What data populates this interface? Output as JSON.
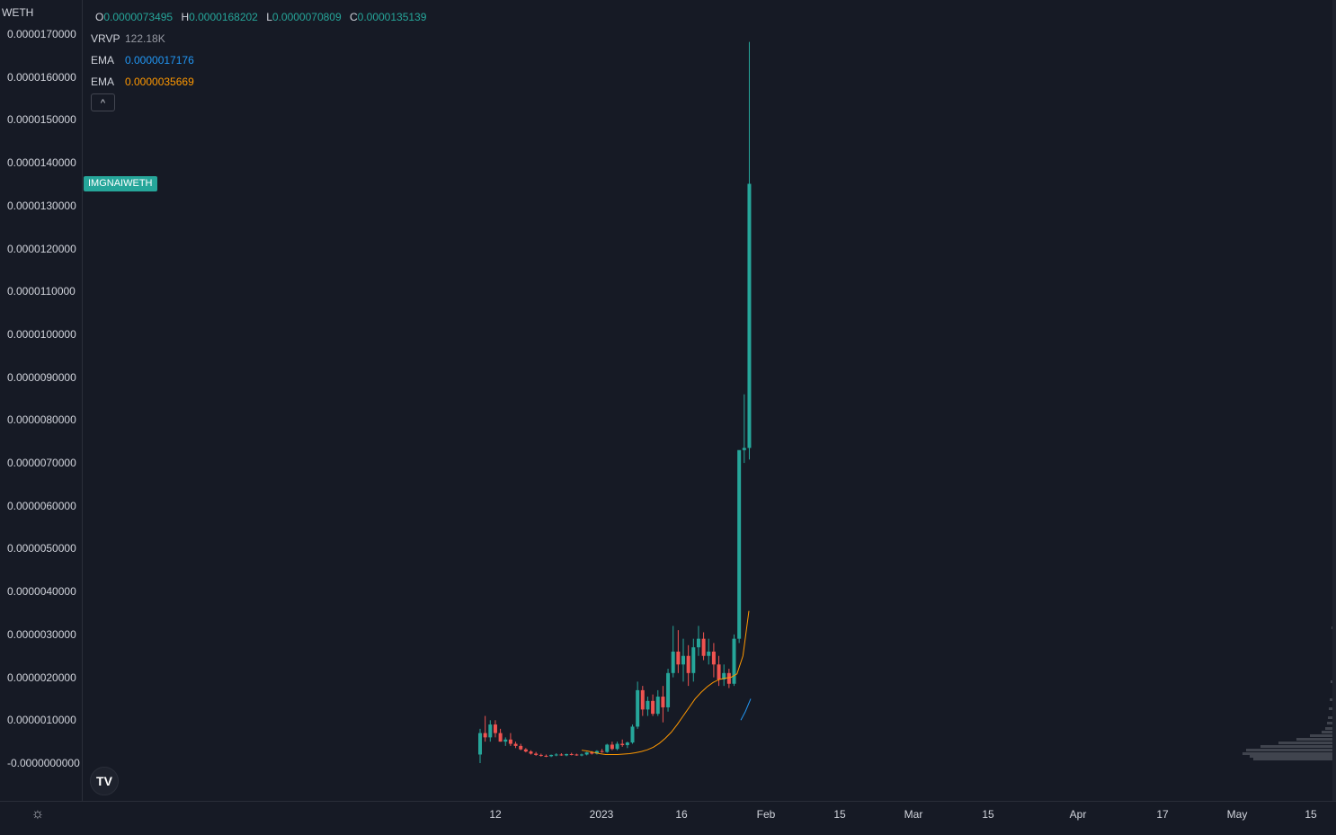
{
  "pair_unit": "WETH",
  "legend": {
    "o_label": "O",
    "o_value": "0.0000073495",
    "h_label": "H",
    "h_value": "0.0000168202",
    "l_label": "L",
    "l_value": "0.0000070809",
    "c_label": "C",
    "c_value": "0.0000135139"
  },
  "indicators": [
    {
      "name": "VRVP",
      "value": "122.18K",
      "color": "#9598a1"
    },
    {
      "name": "EMA",
      "value": "0.0000017176",
      "color": "#2196f3"
    },
    {
      "name": "EMA",
      "value": "0.0000035669",
      "color": "#ff9800"
    }
  ],
  "collapse_icon": "^",
  "symbol_tag": "IMGNAIWETH",
  "logo_text": "TV",
  "colors": {
    "up": "#26a69a",
    "down": "#ef5350",
    "background": "#161a25",
    "ema_fast": "#2196f3",
    "ema_slow": "#ff9800"
  },
  "chart_data": {
    "type": "candlestick",
    "y_tick_labels": [
      "0.0000170000",
      "0.0000160000",
      "0.0000150000",
      "0.0000140000",
      "0.0000130000",
      "0.0000120000",
      "0.0000110000",
      "0.0000100000",
      "0.0000090000",
      "0.0000080000",
      "0.0000070000",
      "0.0000060000",
      "0.0000050000",
      "0.0000040000",
      "0.0000030000",
      "0.0000020000",
      "0.0000010000",
      "-0.0000000000"
    ],
    "y_tick_values": [
      17,
      16,
      15,
      14,
      13,
      12,
      11,
      10,
      9,
      8,
      7,
      6,
      5,
      4,
      3,
      2,
      1,
      0
    ],
    "y_unit_scale": "1e-6",
    "ylim": [
      -0.4,
      17.4
    ],
    "x_tick_labels": [
      "12",
      "2023",
      "16",
      "Feb",
      "15",
      "Mar",
      "15",
      "Apr",
      "17",
      "May",
      "15"
    ],
    "x_tick_positions": [
      551,
      669,
      758,
      852,
      934,
      1016,
      1099,
      1199,
      1293,
      1376,
      1458
    ],
    "candles_ohlc": [
      [
        0.2,
        0.8,
        0.0,
        0.7
      ],
      [
        0.7,
        1.1,
        0.5,
        0.6
      ],
      [
        0.6,
        1.0,
        0.5,
        0.9
      ],
      [
        0.9,
        1.0,
        0.6,
        0.7
      ],
      [
        0.7,
        0.8,
        0.5,
        0.5
      ],
      [
        0.5,
        0.6,
        0.4,
        0.55
      ],
      [
        0.55,
        0.7,
        0.4,
        0.45
      ],
      [
        0.45,
        0.5,
        0.35,
        0.4
      ],
      [
        0.4,
        0.45,
        0.3,
        0.32
      ],
      [
        0.32,
        0.35,
        0.25,
        0.27
      ],
      [
        0.27,
        0.3,
        0.2,
        0.22
      ],
      [
        0.22,
        0.26,
        0.17,
        0.19
      ],
      [
        0.19,
        0.22,
        0.15,
        0.17
      ],
      [
        0.17,
        0.2,
        0.14,
        0.16
      ],
      [
        0.16,
        0.2,
        0.14,
        0.19
      ],
      [
        0.19,
        0.23,
        0.16,
        0.2
      ],
      [
        0.2,
        0.23,
        0.17,
        0.18
      ],
      [
        0.18,
        0.22,
        0.16,
        0.21
      ],
      [
        0.21,
        0.24,
        0.18,
        0.2
      ],
      [
        0.2,
        0.22,
        0.17,
        0.19
      ],
      [
        0.19,
        0.22,
        0.16,
        0.2
      ],
      [
        0.2,
        0.26,
        0.18,
        0.25
      ],
      [
        0.25,
        0.28,
        0.2,
        0.22
      ],
      [
        0.22,
        0.3,
        0.2,
        0.28
      ],
      [
        0.28,
        0.33,
        0.24,
        0.26
      ],
      [
        0.26,
        0.45,
        0.24,
        0.43
      ],
      [
        0.43,
        0.5,
        0.3,
        0.33
      ],
      [
        0.33,
        0.5,
        0.3,
        0.45
      ],
      [
        0.45,
        0.55,
        0.38,
        0.42
      ],
      [
        0.42,
        0.5,
        0.35,
        0.48
      ],
      [
        0.48,
        0.9,
        0.45,
        0.85
      ],
      [
        0.85,
        1.9,
        0.8,
        1.7
      ],
      [
        1.7,
        1.8,
        1.1,
        1.25
      ],
      [
        1.25,
        1.55,
        1.1,
        1.45
      ],
      [
        1.45,
        1.6,
        1.1,
        1.15
      ],
      [
        1.15,
        1.7,
        1.1,
        1.55
      ],
      [
        1.55,
        1.8,
        0.95,
        1.3
      ],
      [
        1.3,
        2.2,
        1.2,
        2.1
      ],
      [
        2.1,
        3.2,
        2.0,
        2.6
      ],
      [
        2.6,
        3.1,
        2.1,
        2.3
      ],
      [
        2.3,
        2.9,
        1.9,
        2.5
      ],
      [
        2.5,
        2.75,
        1.8,
        2.1
      ],
      [
        2.1,
        2.9,
        1.9,
        2.7
      ],
      [
        2.7,
        3.2,
        2.5,
        2.9
      ],
      [
        2.9,
        3.05,
        2.4,
        2.5
      ],
      [
        2.5,
        2.9,
        2.3,
        2.6
      ],
      [
        2.6,
        2.8,
        2.0,
        2.3
      ],
      [
        2.3,
        2.5,
        1.8,
        1.95
      ],
      [
        1.95,
        2.3,
        1.8,
        2.1
      ],
      [
        2.1,
        2.2,
        1.75,
        1.85
      ],
      [
        1.85,
        3.0,
        1.8,
        2.9
      ],
      [
        2.9,
        3.2,
        2.8,
        7.3
      ],
      [
        7.3,
        8.6,
        7.0,
        7.35
      ],
      [
        7.35,
        16.82,
        7.08,
        13.51
      ]
    ],
    "ema_fast": [
      [
        1.0,
        0.95
      ],
      [
        1.2,
        1.25
      ],
      [
        1.5,
        1.7
      ]
    ],
    "ema_slow": [
      0.3,
      0.28,
      0.25,
      0.22,
      0.2,
      0.2,
      0.2,
      0.21,
      0.22,
      0.24,
      0.27,
      0.31,
      0.37,
      0.46,
      0.58,
      0.72,
      0.9,
      1.1,
      1.3,
      1.5,
      1.65,
      1.78,
      1.88,
      1.95,
      1.98,
      2.0,
      2.08,
      2.5,
      3.55
    ]
  }
}
